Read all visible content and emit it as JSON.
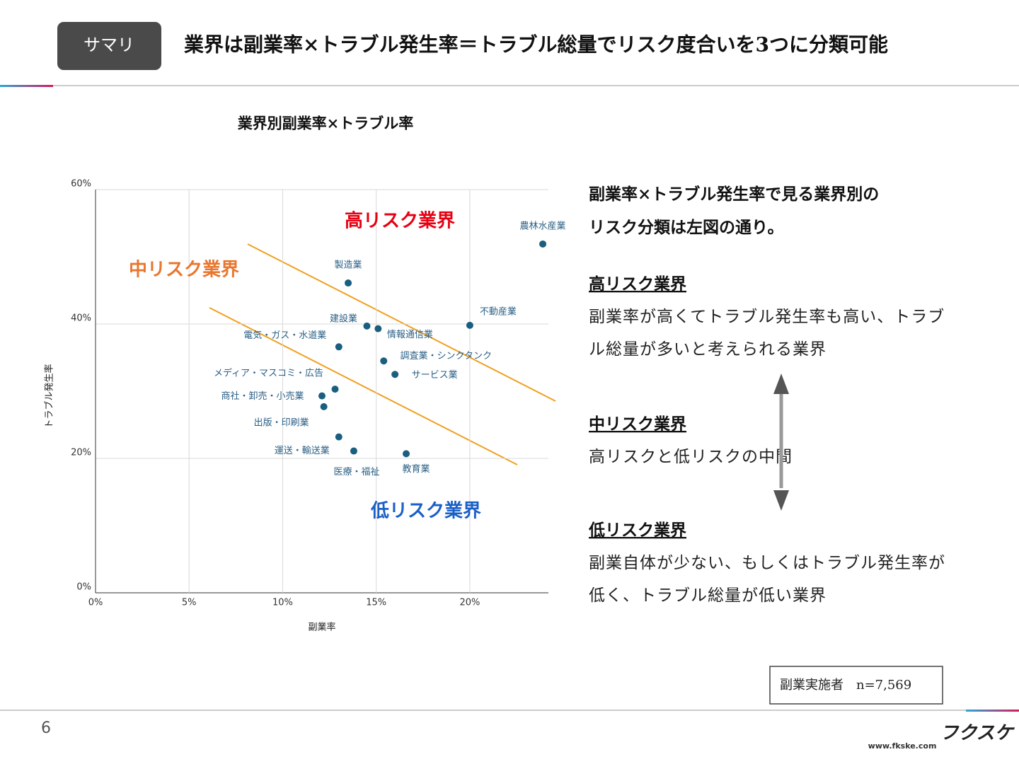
{
  "header": {
    "tag": "サマリ",
    "title": "業界は副業率×トラブル発生率＝トラブル総量でリスク度合いを3つに分類可能"
  },
  "chart_data": {
    "type": "scatter",
    "title": "業界別副業率×トラブル率",
    "x_label": "副業率",
    "y_label": "トラブル発生率",
    "color": "#1a5e80",
    "grid": true,
    "xlim": [
      0,
      24.2
    ],
    "ylim": [
      0,
      60
    ],
    "xticks": [
      {
        "value": 0,
        "label": "0%"
      },
      {
        "value": 5,
        "label": "5%"
      },
      {
        "value": 10,
        "label": "10%"
      },
      {
        "value": 15,
        "label": "15%"
      },
      {
        "value": 20,
        "label": "20%"
      }
    ],
    "yticks": [
      {
        "value": 0,
        "label": "0%"
      },
      {
        "value": 20,
        "label": "20%"
      },
      {
        "value": 40,
        "label": "40%"
      },
      {
        "value": 60,
        "label": "60%"
      }
    ],
    "labels": [
      "農林水産業",
      "製造業",
      "建設業",
      "情報通信業",
      "不動産業",
      "電気・ガス・水道業",
      "調査業・シンクタンク",
      "サービス業",
      "メディア・マスコミ・広告",
      "商社・卸売・小売業",
      "出版・印刷業",
      "運送・輸送業",
      "医療・福祉",
      "教育業"
    ],
    "x": [
      23.9,
      13.5,
      14.5,
      15.1,
      20.0,
      13.0,
      15.4,
      16.0,
      12.8,
      12.1,
      12.2,
      13.0,
      13.8,
      16.6
    ],
    "values": [
      51.9,
      46.1,
      39.7,
      39.3,
      39.8,
      36.6,
      34.5,
      32.5,
      30.3,
      29.3,
      27.7,
      23.2,
      21.1,
      20.7
    ],
    "annotations": [
      {
        "text": "高リスク業界",
        "color": "#e60012"
      },
      {
        "text": "中リスク業界",
        "color": "#e8772e"
      },
      {
        "text": "低リスク業界",
        "color": "#1a5fc8"
      }
    ]
  },
  "summary": {
    "lines": [
      "副業率×トラブル発生率で見る業界別の",
      "リスク分類は左図の通り。"
    ],
    "sections": [
      {
        "title": "高リスク業界",
        "lines": [
          "副業率が高くてトラブル発生率も高い、トラブ",
          "ル総量が多いと考えられる業界"
        ]
      },
      {
        "title": "中リスク業界",
        "lines": [
          "高リスクと低リスクの中間"
        ]
      },
      {
        "title": "低リスク業界",
        "lines": [
          "副業自体が少ない、もしくはトラブル発生率が",
          "低く、トラブル総量が低い業界"
        ]
      }
    ]
  },
  "note": "副業実施者　n=7,569",
  "footer": {
    "page": "6",
    "logo": "フクスケ",
    "url": "www.fkske.com"
  }
}
